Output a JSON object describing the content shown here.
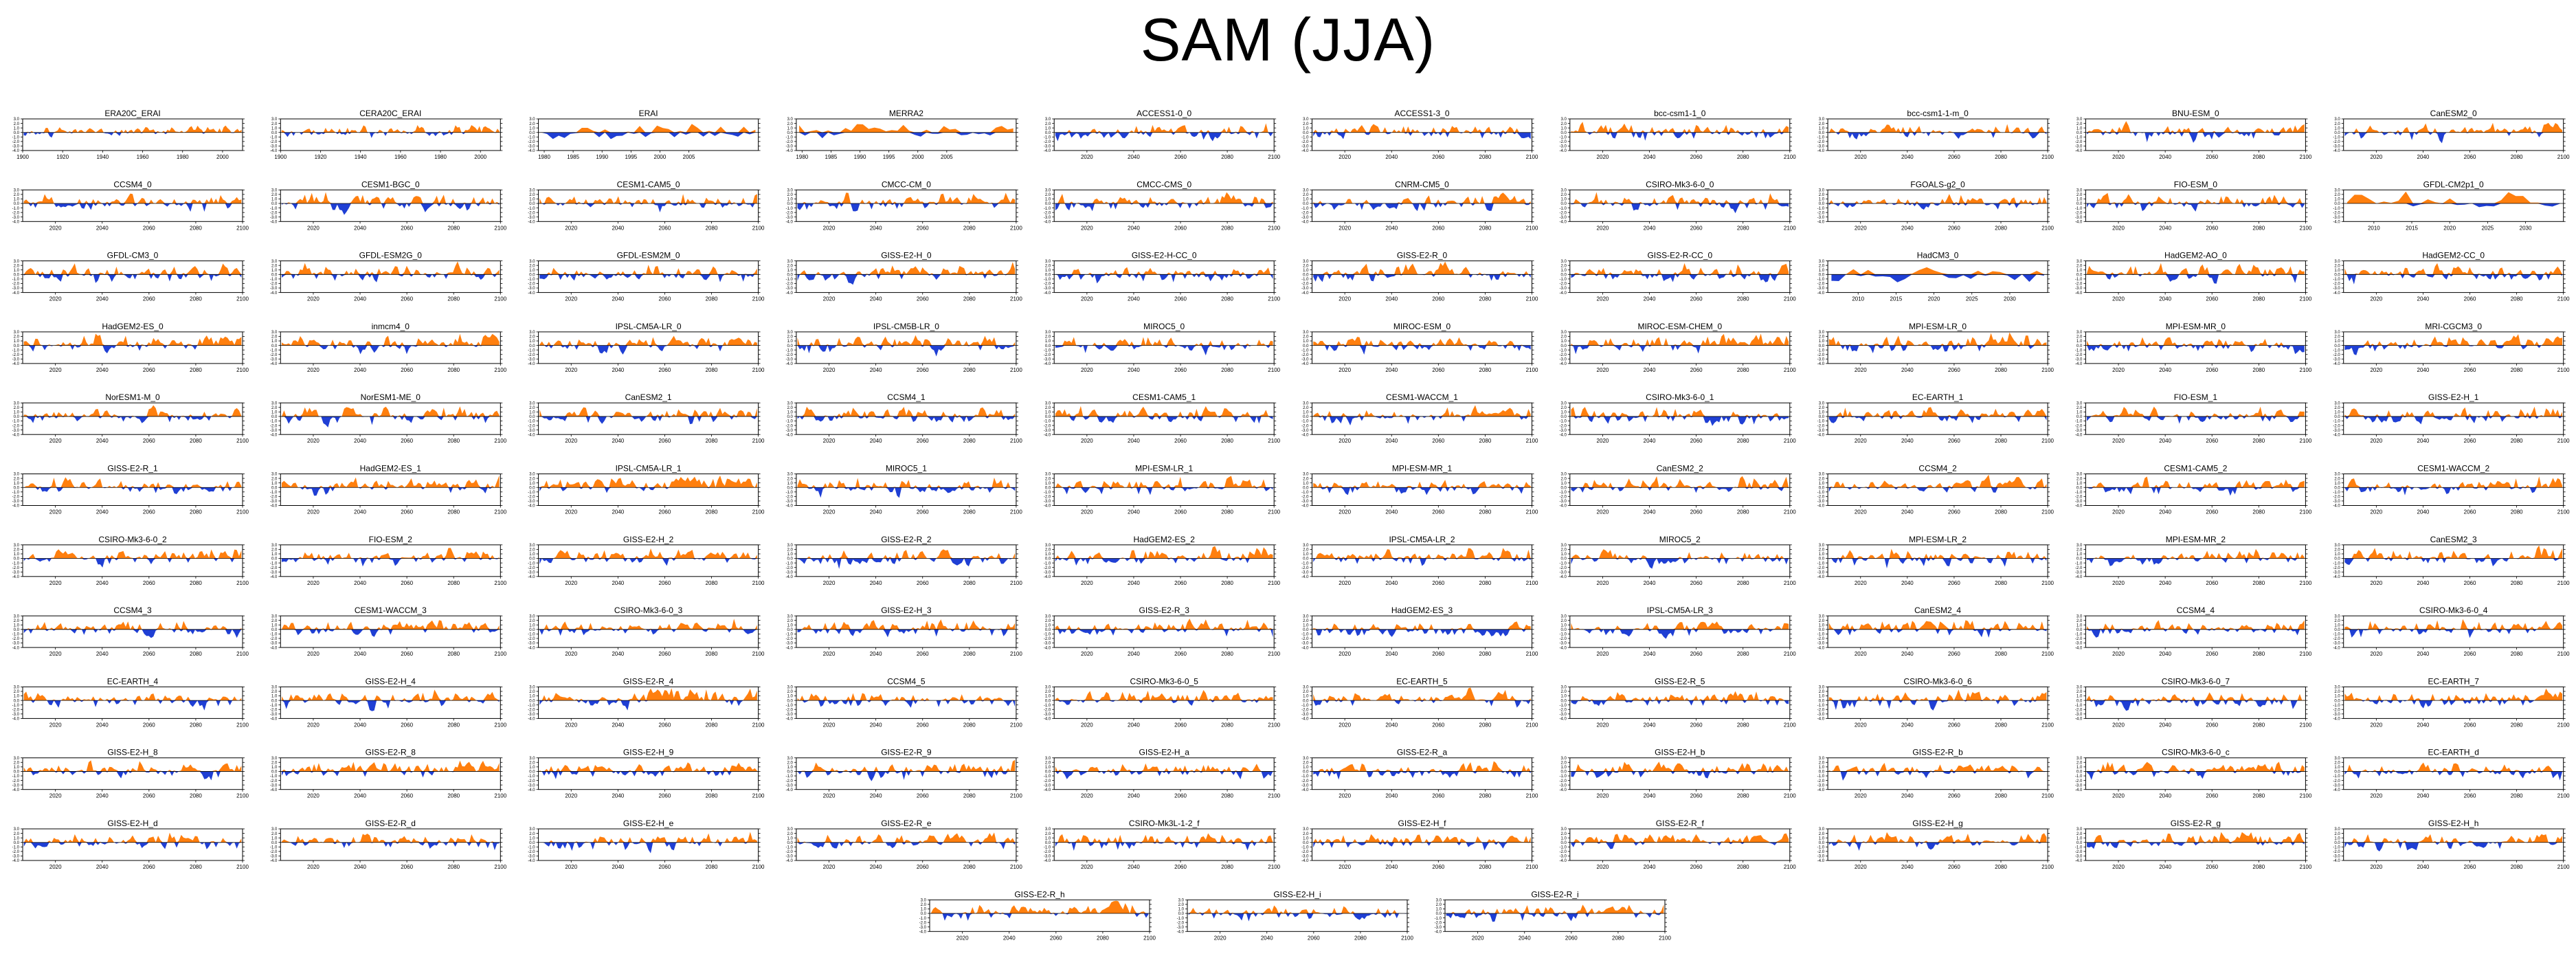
{
  "title": "SAM (JJA)",
  "colors": {
    "positive": "#ff7f0e",
    "negative": "#1f3fd4",
    "axis": "#000000"
  },
  "chart_data": {
    "type": "area",
    "title": "SAM (JJA)",
    "ylim": [
      -4.0,
      3.0
    ],
    "yticks": [
      3.0,
      2.0,
      1.0,
      0.0,
      -1.0,
      -2.0,
      -3.0,
      -4.0
    ],
    "ytick_labels": [
      "3.0",
      "2.0",
      "1.0",
      "0.0",
      "-1.0",
      "-2.0",
      "-3.0",
      "-4.0"
    ],
    "grid": false,
    "fill_positive_color": "#ff7f0e",
    "fill_negative_color": "#1f3fd4",
    "axis_presets": {
      "long20c": {
        "xlim": [
          1900,
          2010
        ],
        "xticks": [
          1900,
          1920,
          1940,
          1960,
          1980,
          2000
        ]
      },
      "reanalysis": {
        "xlim": [
          1979,
          2017
        ],
        "xticks": [
          1980,
          1985,
          1990,
          1995,
          2000,
          2005
        ]
      },
      "proj": {
        "xlim": [
          2006,
          2100
        ],
        "xticks": [
          2020,
          2040,
          2060,
          2080,
          2100
        ]
      },
      "short": {
        "xlim": [
          2006,
          2035
        ],
        "xticks": [
          2010,
          2015,
          2020,
          2025,
          2030
        ]
      }
    },
    "panels": [
      {
        "name": "ERA20C_ERAI",
        "axis": "long20c",
        "seed": 1,
        "amp": 0.7,
        "trend": 0.5,
        "n": 110
      },
      {
        "name": "CERA20C_ERAI",
        "axis": "long20c",
        "seed": 2,
        "amp": 0.7,
        "trend": 0.4,
        "n": 110
      },
      {
        "name": "ERAI",
        "axis": "reanalysis",
        "seed": 3,
        "amp": 1.2,
        "trend": 0.0,
        "n": 38
      },
      {
        "name": "MERRA2",
        "axis": "reanalysis",
        "seed": 4,
        "amp": 1.1,
        "trend": 0.2,
        "n": 38
      },
      {
        "name": "ACCESS1-0_0",
        "axis": "proj",
        "seed": 5,
        "amp": 1.0,
        "trend": 0.3,
        "n": 95
      },
      {
        "name": "ACCESS1-3_0",
        "axis": "proj",
        "seed": 6,
        "amp": 1.0,
        "trend": 0.3,
        "n": 95
      },
      {
        "name": "bcc-csm1-1_0",
        "axis": "proj",
        "seed": 7,
        "amp": 1.0,
        "trend": 0.2,
        "n": 95
      },
      {
        "name": "bcc-csm1-1-m_0",
        "axis": "proj",
        "seed": 8,
        "amp": 0.9,
        "trend": 0.3,
        "n": 95
      },
      {
        "name": "BNU-ESM_0",
        "axis": "proj",
        "seed": 9,
        "amp": 1.0,
        "trend": 0.2,
        "n": 95
      },
      {
        "name": "CanESM2_0",
        "axis": "proj",
        "seed": 10,
        "amp": 0.9,
        "trend": 0.4,
        "n": 95
      },
      {
        "name": "CCSM4_0",
        "axis": "proj",
        "seed": 11,
        "amp": 1.0,
        "trend": 0.3,
        "n": 95
      },
      {
        "name": "CESM1-BGC_0",
        "axis": "proj",
        "seed": 12,
        "amp": 1.1,
        "trend": 0.4,
        "n": 95
      },
      {
        "name": "CESM1-CAM5_0",
        "axis": "proj",
        "seed": 13,
        "amp": 1.0,
        "trend": 0.3,
        "n": 95
      },
      {
        "name": "CMCC-CM_0",
        "axis": "proj",
        "seed": 14,
        "amp": 1.1,
        "trend": 0.6,
        "n": 95
      },
      {
        "name": "CMCC-CMS_0",
        "axis": "proj",
        "seed": 15,
        "amp": 1.1,
        "trend": 0.5,
        "n": 95
      },
      {
        "name": "CNRM-CM5_0",
        "axis": "proj",
        "seed": 16,
        "amp": 1.0,
        "trend": 0.4,
        "n": 95
      },
      {
        "name": "CSIRO-Mk3-6-0_0",
        "axis": "proj",
        "seed": 17,
        "amp": 1.0,
        "trend": 0.3,
        "n": 95
      },
      {
        "name": "FGOALS-g2_0",
        "axis": "proj",
        "seed": 18,
        "amp": 0.9,
        "trend": 0.3,
        "n": 95
      },
      {
        "name": "FIO-ESM_0",
        "axis": "proj",
        "seed": 19,
        "amp": 1.0,
        "trend": 0.3,
        "n": 95
      },
      {
        "name": "GFDL-CM2p1_0",
        "axis": "short",
        "seed": 20,
        "amp": 1.3,
        "trend": 0.5,
        "n": 30
      },
      {
        "name": "GFDL-CM3_0",
        "axis": "proj",
        "seed": 21,
        "amp": 1.0,
        "trend": 0.3,
        "n": 95
      },
      {
        "name": "GFDL-ESM2G_0",
        "axis": "proj",
        "seed": 22,
        "amp": 1.0,
        "trend": 0.2,
        "n": 95
      },
      {
        "name": "GFDL-ESM2M_0",
        "axis": "proj",
        "seed": 23,
        "amp": 1.0,
        "trend": 0.2,
        "n": 95
      },
      {
        "name": "GISS-E2-H_0",
        "axis": "proj",
        "seed": 24,
        "amp": 1.0,
        "trend": 0.3,
        "n": 95
      },
      {
        "name": "GISS-E2-H-CC_0",
        "axis": "proj",
        "seed": 25,
        "amp": 1.1,
        "trend": 0.3,
        "n": 95
      },
      {
        "name": "GISS-E2-R_0",
        "axis": "proj",
        "seed": 26,
        "amp": 1.1,
        "trend": 0.2,
        "n": 95
      },
      {
        "name": "GISS-E2-R-CC_0",
        "axis": "proj",
        "seed": 27,
        "amp": 1.1,
        "trend": 0.3,
        "n": 95
      },
      {
        "name": "HadCM3_0",
        "axis": "short",
        "seed": 28,
        "amp": 1.2,
        "trend": 0.1,
        "n": 30
      },
      {
        "name": "HadGEM2-AO_0",
        "axis": "proj",
        "seed": 29,
        "amp": 1.0,
        "trend": 0.4,
        "n": 95
      },
      {
        "name": "HadGEM2-CC_0",
        "axis": "proj",
        "seed": 30,
        "amp": 1.0,
        "trend": 0.3,
        "n": 95
      },
      {
        "name": "HadGEM2-ES_0",
        "axis": "proj",
        "seed": 31,
        "amp": 1.0,
        "trend": 0.5,
        "n": 95
      },
      {
        "name": "inmcm4_0",
        "axis": "proj",
        "seed": 32,
        "amp": 1.0,
        "trend": 0.6,
        "n": 95
      },
      {
        "name": "IPSL-CM5A-LR_0",
        "axis": "proj",
        "seed": 33,
        "amp": 1.0,
        "trend": 0.4,
        "n": 95
      },
      {
        "name": "IPSL-CM5B-LR_0",
        "axis": "proj",
        "seed": 34,
        "amp": 1.1,
        "trend": 0.6,
        "n": 95
      },
      {
        "name": "MIROC5_0",
        "axis": "proj",
        "seed": 35,
        "amp": 1.0,
        "trend": 0.3,
        "n": 95
      },
      {
        "name": "MIROC-ESM_0",
        "axis": "proj",
        "seed": 36,
        "amp": 1.0,
        "trend": 0.3,
        "n": 95
      },
      {
        "name": "MIROC-ESM-CHEM_0",
        "axis": "proj",
        "seed": 37,
        "amp": 1.0,
        "trend": 0.6,
        "n": 95
      },
      {
        "name": "MPI-ESM-LR_0",
        "axis": "proj",
        "seed": 38,
        "amp": 1.1,
        "trend": 0.4,
        "n": 95
      },
      {
        "name": "MPI-ESM-MR_0",
        "axis": "proj",
        "seed": 39,
        "amp": 1.0,
        "trend": 0.3,
        "n": 95
      },
      {
        "name": "MRI-CGCM3_0",
        "axis": "proj",
        "seed": 40,
        "amp": 1.0,
        "trend": 0.5,
        "n": 95
      },
      {
        "name": "NorESM1-M_0",
        "axis": "proj",
        "seed": 41,
        "amp": 1.0,
        "trend": 0.3,
        "n": 95
      },
      {
        "name": "NorESM1-ME_0",
        "axis": "proj",
        "seed": 42,
        "amp": 1.1,
        "trend": 0.2,
        "n": 95
      },
      {
        "name": "CanESM2_1",
        "axis": "proj",
        "seed": 43,
        "amp": 1.0,
        "trend": 0.2,
        "n": 95
      },
      {
        "name": "CCSM4_1",
        "axis": "proj",
        "seed": 44,
        "amp": 1.0,
        "trend": 0.3,
        "n": 95
      },
      {
        "name": "CESM1-CAM5_1",
        "axis": "proj",
        "seed": 45,
        "amp": 1.0,
        "trend": 0.3,
        "n": 95
      },
      {
        "name": "CESM1-WACCM_1",
        "axis": "proj",
        "seed": 46,
        "amp": 1.0,
        "trend": 0.4,
        "n": 95
      },
      {
        "name": "CSIRO-Mk3-6-0_1",
        "axis": "proj",
        "seed": 47,
        "amp": 1.2,
        "trend": 0.0,
        "n": 95
      },
      {
        "name": "EC-EARTH_1",
        "axis": "proj",
        "seed": 48,
        "amp": 1.0,
        "trend": 0.3,
        "n": 95
      },
      {
        "name": "FIO-ESM_1",
        "axis": "proj",
        "seed": 49,
        "amp": 1.0,
        "trend": 0.3,
        "n": 95
      },
      {
        "name": "GISS-E2-H_1",
        "axis": "proj",
        "seed": 50,
        "amp": 1.1,
        "trend": 0.1,
        "n": 95
      },
      {
        "name": "GISS-E2-R_1",
        "axis": "proj",
        "seed": 51,
        "amp": 1.0,
        "trend": 0.2,
        "n": 95
      },
      {
        "name": "HadGEM2-ES_1",
        "axis": "proj",
        "seed": 52,
        "amp": 1.0,
        "trend": 0.4,
        "n": 95
      },
      {
        "name": "IPSL-CM5A-LR_1",
        "axis": "proj",
        "seed": 53,
        "amp": 1.1,
        "trend": 0.6,
        "n": 95
      },
      {
        "name": "MIROC5_1",
        "axis": "proj",
        "seed": 54,
        "amp": 1.1,
        "trend": 0.2,
        "n": 95
      },
      {
        "name": "MPI-ESM-LR_1",
        "axis": "proj",
        "seed": 55,
        "amp": 1.0,
        "trend": 0.3,
        "n": 95
      },
      {
        "name": "MPI-ESM-MR_1",
        "axis": "proj",
        "seed": 56,
        "amp": 1.0,
        "trend": 0.3,
        "n": 95
      },
      {
        "name": "CanESM2_2",
        "axis": "proj",
        "seed": 57,
        "amp": 1.0,
        "trend": 0.5,
        "n": 95
      },
      {
        "name": "CCSM4_2",
        "axis": "proj",
        "seed": 58,
        "amp": 1.0,
        "trend": 0.4,
        "n": 95
      },
      {
        "name": "CESM1-CAM5_2",
        "axis": "proj",
        "seed": 59,
        "amp": 1.0,
        "trend": 0.3,
        "n": 95
      },
      {
        "name": "CESM1-WACCM_2",
        "axis": "proj",
        "seed": 60,
        "amp": 1.0,
        "trend": 0.4,
        "n": 95
      },
      {
        "name": "CSIRO-Mk3-6-0_2",
        "axis": "proj",
        "seed": 61,
        "amp": 1.0,
        "trend": 0.3,
        "n": 95
      },
      {
        "name": "FIO-ESM_2",
        "axis": "proj",
        "seed": 62,
        "amp": 1.0,
        "trend": 0.3,
        "n": 95
      },
      {
        "name": "GISS-E2-H_2",
        "axis": "proj",
        "seed": 63,
        "amp": 1.0,
        "trend": 0.3,
        "n": 95
      },
      {
        "name": "GISS-E2-R_2",
        "axis": "proj",
        "seed": 64,
        "amp": 1.0,
        "trend": 0.3,
        "n": 95
      },
      {
        "name": "HadGEM2-ES_2",
        "axis": "proj",
        "seed": 65,
        "amp": 1.1,
        "trend": 0.7,
        "n": 95
      },
      {
        "name": "IPSL-CM5A-LR_2",
        "axis": "proj",
        "seed": 66,
        "amp": 1.0,
        "trend": 0.4,
        "n": 95
      },
      {
        "name": "MIROC5_2",
        "axis": "proj",
        "seed": 67,
        "amp": 1.0,
        "trend": 0.2,
        "n": 95
      },
      {
        "name": "MPI-ESM-LR_2",
        "axis": "proj",
        "seed": 68,
        "amp": 1.1,
        "trend": 0.3,
        "n": 95
      },
      {
        "name": "MPI-ESM-MR_2",
        "axis": "proj",
        "seed": 69,
        "amp": 1.0,
        "trend": 0.3,
        "n": 95
      },
      {
        "name": "CanESM2_3",
        "axis": "proj",
        "seed": 70,
        "amp": 1.0,
        "trend": 0.3,
        "n": 95
      },
      {
        "name": "CCSM4_3",
        "axis": "proj",
        "seed": 71,
        "amp": 1.0,
        "trend": 0.3,
        "n": 95
      },
      {
        "name": "CESM1-WACCM_3",
        "axis": "proj",
        "seed": 72,
        "amp": 1.0,
        "trend": 0.4,
        "n": 95
      },
      {
        "name": "CSIRO-Mk3-6-0_3",
        "axis": "proj",
        "seed": 73,
        "amp": 1.0,
        "trend": 0.2,
        "n": 95
      },
      {
        "name": "GISS-E2-H_3",
        "axis": "proj",
        "seed": 74,
        "amp": 1.0,
        "trend": 0.3,
        "n": 95
      },
      {
        "name": "GISS-E2-R_3",
        "axis": "proj",
        "seed": 75,
        "amp": 1.0,
        "trend": 0.2,
        "n": 95
      },
      {
        "name": "HadGEM2-ES_3",
        "axis": "proj",
        "seed": 76,
        "amp": 1.0,
        "trend": 0.3,
        "n": 95
      },
      {
        "name": "IPSL-CM5A-LR_3",
        "axis": "proj",
        "seed": 77,
        "amp": 1.0,
        "trend": 0.3,
        "n": 95
      },
      {
        "name": "CanESM2_4",
        "axis": "proj",
        "seed": 78,
        "amp": 1.2,
        "trend": 0.4,
        "n": 95
      },
      {
        "name": "CCSM4_4",
        "axis": "proj",
        "seed": 79,
        "amp": 1.0,
        "trend": 0.3,
        "n": 95
      },
      {
        "name": "CSIRO-Mk3-6-0_4",
        "axis": "proj",
        "seed": 80,
        "amp": 1.0,
        "trend": 0.3,
        "n": 95
      },
      {
        "name": "EC-EARTH_4",
        "axis": "proj",
        "seed": 81,
        "amp": 1.0,
        "trend": 0.2,
        "n": 95
      },
      {
        "name": "GISS-E2-H_4",
        "axis": "proj",
        "seed": 82,
        "amp": 1.0,
        "trend": 0.3,
        "n": 95
      },
      {
        "name": "GISS-E2-R_4",
        "axis": "proj",
        "seed": 83,
        "amp": 1.1,
        "trend": 0.6,
        "n": 95
      },
      {
        "name": "CCSM4_5",
        "axis": "proj",
        "seed": 84,
        "amp": 1.0,
        "trend": 0.3,
        "n": 95
      },
      {
        "name": "CSIRO-Mk3-6-0_5",
        "axis": "proj",
        "seed": 85,
        "amp": 1.0,
        "trend": 0.3,
        "n": 95
      },
      {
        "name": "EC-EARTH_5",
        "axis": "proj",
        "seed": 86,
        "amp": 1.0,
        "trend": 0.3,
        "n": 95
      },
      {
        "name": "GISS-E2-R_5",
        "axis": "proj",
        "seed": 87,
        "amp": 1.0,
        "trend": 0.3,
        "n": 95
      },
      {
        "name": "CSIRO-Mk3-6-0_6",
        "axis": "proj",
        "seed": 88,
        "amp": 1.0,
        "trend": 0.3,
        "n": 95
      },
      {
        "name": "CSIRO-Mk3-6-0_7",
        "axis": "proj",
        "seed": 89,
        "amp": 1.1,
        "trend": 0.1,
        "n": 95
      },
      {
        "name": "EC-EARTH_7",
        "axis": "proj",
        "seed": 90,
        "amp": 1.1,
        "trend": 0.5,
        "n": 95
      },
      {
        "name": "GISS-E2-H_8",
        "axis": "proj",
        "seed": 91,
        "amp": 1.0,
        "trend": 0.3,
        "n": 95
      },
      {
        "name": "GISS-E2-R_8",
        "axis": "proj",
        "seed": 92,
        "amp": 1.0,
        "trend": 0.5,
        "n": 95
      },
      {
        "name": "GISS-E2-H_9",
        "axis": "proj",
        "seed": 93,
        "amp": 1.0,
        "trend": 0.3,
        "n": 95
      },
      {
        "name": "GISS-E2-R_9",
        "axis": "proj",
        "seed": 94,
        "amp": 1.0,
        "trend": 0.3,
        "n": 95
      },
      {
        "name": "GISS-E2-H_a",
        "axis": "proj",
        "seed": 95,
        "amp": 1.0,
        "trend": 0.2,
        "n": 95
      },
      {
        "name": "GISS-E2-R_a",
        "axis": "proj",
        "seed": 96,
        "amp": 1.0,
        "trend": 0.2,
        "n": 95
      },
      {
        "name": "GISS-E2-H_b",
        "axis": "proj",
        "seed": 97,
        "amp": 1.0,
        "trend": 0.2,
        "n": 95
      },
      {
        "name": "GISS-E2-R_b",
        "axis": "proj",
        "seed": 98,
        "amp": 1.0,
        "trend": 0.3,
        "n": 95
      },
      {
        "name": "CSIRO-Mk3-6-0_c",
        "axis": "proj",
        "seed": 99,
        "amp": 1.0,
        "trend": 0.4,
        "n": 95
      },
      {
        "name": "EC-EARTH_d",
        "axis": "proj",
        "seed": 100,
        "amp": 1.0,
        "trend": 0.3,
        "n": 95
      },
      {
        "name": "GISS-E2-H_d",
        "axis": "proj",
        "seed": 101,
        "amp": 1.0,
        "trend": 0.3,
        "n": 95
      },
      {
        "name": "GISS-E2-R_d",
        "axis": "proj",
        "seed": 102,
        "amp": 1.0,
        "trend": 0.3,
        "n": 95
      },
      {
        "name": "GISS-E2-H_e",
        "axis": "proj",
        "seed": 103,
        "amp": 1.0,
        "trend": 0.2,
        "n": 95
      },
      {
        "name": "GISS-E2-R_e",
        "axis": "proj",
        "seed": 104,
        "amp": 1.0,
        "trend": 0.3,
        "n": 95
      },
      {
        "name": "CSIRO-Mk3L-1-2_f",
        "axis": "proj",
        "seed": 105,
        "amp": 1.0,
        "trend": 0.3,
        "n": 95
      },
      {
        "name": "GISS-E2-H_f",
        "axis": "proj",
        "seed": 106,
        "amp": 1.0,
        "trend": 0.2,
        "n": 95
      },
      {
        "name": "GISS-E2-R_f",
        "axis": "proj",
        "seed": 107,
        "amp": 1.0,
        "trend": 0.3,
        "n": 95
      },
      {
        "name": "GISS-E2-H_g",
        "axis": "proj",
        "seed": 108,
        "amp": 1.0,
        "trend": 0.4,
        "n": 95
      },
      {
        "name": "GISS-E2-R_g",
        "axis": "proj",
        "seed": 109,
        "amp": 1.0,
        "trend": 0.3,
        "n": 95
      },
      {
        "name": "GISS-E2-H_h",
        "axis": "proj",
        "seed": 110,
        "amp": 1.0,
        "trend": 0.3,
        "n": 95
      },
      {
        "name": "GISS-E2-R_h",
        "axis": "proj",
        "seed": 111,
        "amp": 1.0,
        "trend": 0.5,
        "n": 95
      },
      {
        "name": "GISS-E2-H_i",
        "axis": "proj",
        "seed": 112,
        "amp": 1.1,
        "trend": 0.0,
        "n": 95
      },
      {
        "name": "GISS-E2-R_i",
        "axis": "proj",
        "seed": 113,
        "amp": 1.0,
        "trend": 0.2,
        "n": 95
      }
    ]
  }
}
